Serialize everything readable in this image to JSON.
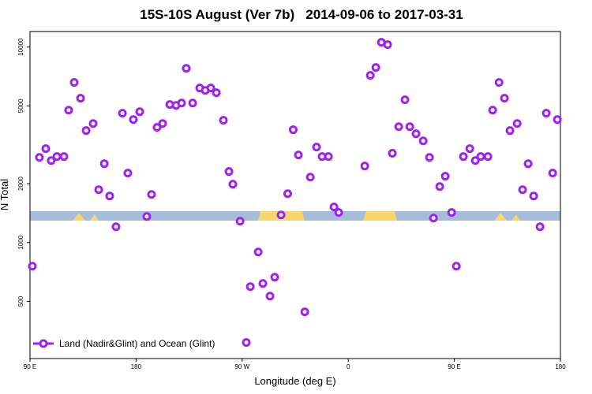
{
  "chart_data": {
    "type": "scatter",
    "title": "15S-10S August (Ver 7b)   2014-09-06 to 2017-03-31",
    "xlabel": "Longitude (deg E)",
    "ylabel": "N Total",
    "log_y": true,
    "grid": false,
    "legend_position": "lower left",
    "xlim": [
      90,
      540
    ],
    "ylim": [
      255,
      12000
    ],
    "xticks": [
      {
        "value": 90,
        "label": "90 E"
      },
      {
        "value": 180,
        "label": "180"
      },
      {
        "value": 270,
        "label": "90 W"
      },
      {
        "value": 360,
        "label": "0"
      },
      {
        "value": 450,
        "label": "90 E"
      },
      {
        "value": 540,
        "label": "180"
      }
    ],
    "yticks": [
      500,
      1000,
      2000,
      5000,
      10000
    ],
    "series": [
      {
        "name": "Land (Nadir&Glint) and Ocean (Glint)",
        "color": "#a020f0",
        "x": [
          92,
          98,
          103.4,
          108,
          112.8,
          118.8,
          122.8,
          127.5,
          132.9,
          137.6,
          143.6,
          148.3,
          153,
          157.6,
          163,
          168.4,
          173,
          177.7,
          183.1,
          189.1,
          193.1,
          197.8,
          202.5,
          208.6,
          213.9,
          218.6,
          222.6,
          228,
          234,
          238.7,
          243.4,
          248.1,
          254.1,
          258.8,
          262.1,
          268.2,
          273.5,
          276.9,
          283.6,
          287.6,
          293.6,
          297.6,
          303,
          308.6,
          313.3,
          317.7,
          323.1,
          327.8,
          333.1,
          337.8,
          343.2,
          347.9,
          351.9,
          374,
          378.7,
          383.4,
          388.1,
          393.4,
          397.4,
          402.8,
          408.1,
          412.2,
          417.5,
          423.6,
          428.9,
          432.3,
          437.6,
          442.3,
          447.7,
          451.7,
          457.7,
          463.1,
          467.8,
          472.4,
          478.5,
          482.5,
          487.9,
          492.5,
          497.2,
          503.3,
          507.9,
          512.6,
          517.3,
          522.7,
          528,
          533.4,
          537.4
        ],
        "values": [
          757,
          2724,
          3020,
          2626,
          2752,
          2752,
          4756,
          6590,
          5470,
          3738,
          4062,
          1863,
          2531,
          1730,
          1204,
          4585,
          2265,
          4256,
          4670,
          1358,
          1762,
          3880,
          4062,
          5080,
          5030,
          5170,
          7780,
          5170,
          6170,
          6000,
          6170,
          5840,
          4220,
          2307,
          1988,
          1285,
          308,
          595,
          895,
          617,
          532,
          665,
          1384,
          1778,
          3773,
          2805,
          442,
          2160,
          3077,
          2752,
          2752,
          1520,
          1425,
          2462,
          7160,
          7860,
          10570,
          10280,
          2860,
          3913,
          5370,
          3913,
          3600,
          3311,
          2724,
          1334,
          1933,
          2183,
          1425,
          757,
          2752,
          3020,
          2626,
          2752,
          2752,
          4756,
          6590,
          5470,
          3738,
          4062,
          1863,
          2531,
          1730,
          1204,
          4585,
          2265,
          4256
        ]
      }
    ]
  }
}
